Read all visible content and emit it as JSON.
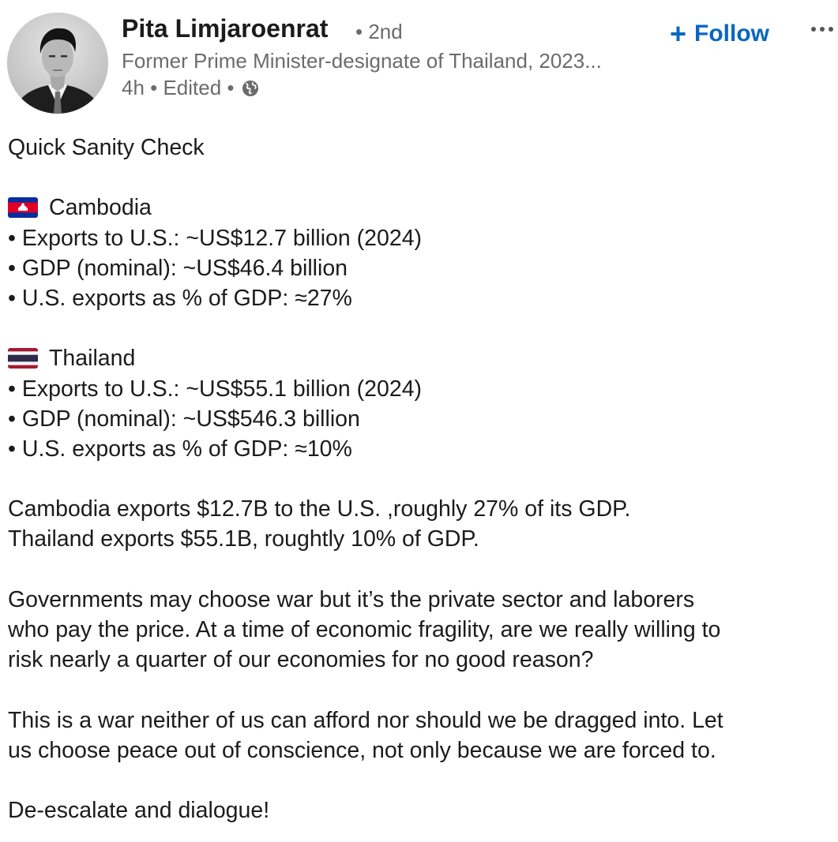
{
  "author": {
    "name": "Pita Limjaroenrat",
    "degree": "• 2nd",
    "headline": "Former Prime Minister-designate of Thailand, 2023...",
    "meta": "4h • Edited •",
    "visibility_icon": "globe-icon"
  },
  "actions": {
    "follow_label": "Follow",
    "follow_icon": "plus-icon",
    "more_icon": "more-dots-icon"
  },
  "colors": {
    "accent": "#0a66c2",
    "text": "#1b1b1b",
    "muted": "#6b6b6b"
  },
  "post": {
    "title": "Quick Sanity Check",
    "cambodia": {
      "flag_icon": "cambodia-flag-icon",
      "name": "Cambodia",
      "bullets": [
        "• Exports to U.S.: ~US$12.7 billion (2024)",
        "• GDP (nominal): ~US$46.4 billion",
        "• U.S. exports as % of GDP: ≈27%"
      ]
    },
    "thailand": {
      "flag_icon": "thailand-flag-icon",
      "name": "Thailand",
      "bullets": [
        "• Exports to U.S.: ~US$55.1 billion (2024)",
        "• GDP (nominal): ~US$546.3 billion",
        "• U.S. exports as % of GDP: ≈10%"
      ]
    },
    "summary": [
      "Cambodia exports $12.7B to the U.S. ,roughly 27% of its GDP.",
      "Thailand exports $55.1B, roughtly 10% of GDP."
    ],
    "paragraph1": [
      "Governments may choose war but it’s the private sector and laborers",
      "who pay the price. At a time of economic fragility, are we really willing to",
      "risk nearly a quarter of our economies for no good reason?"
    ],
    "paragraph2": [
      "This is a war neither of us can afford nor should we be dragged into. Let",
      "us choose peace out of conscience, not only because we are forced to."
    ],
    "closing": "De-escalate and dialogue!"
  }
}
